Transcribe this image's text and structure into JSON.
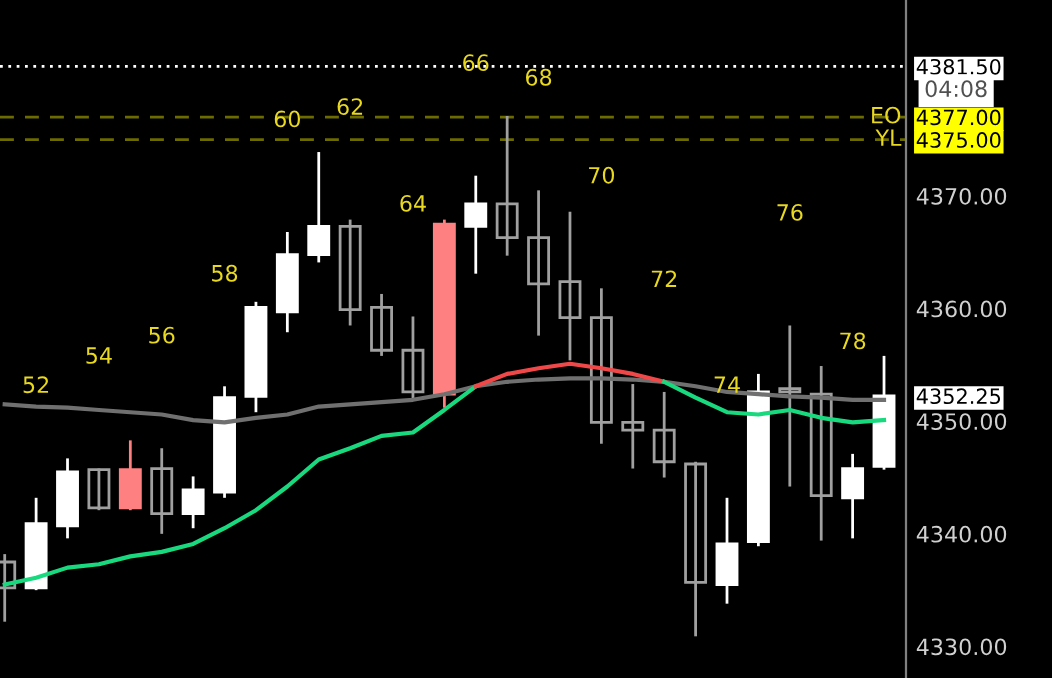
{
  "chart_data": {
    "type": "candlestick",
    "categories": [
      null,
      null,
      null,
      null,
      null,
      null,
      null,
      null,
      null,
      null,
      null,
      null,
      null,
      null,
      null,
      null,
      null,
      null,
      null,
      null,
      null,
      null,
      null,
      null,
      null,
      null,
      null,
      null,
      null
    ],
    "ohlc": [
      [
        4337.5,
        4338.2,
        4332.2,
        4335.2
      ],
      [
        4335.2,
        4343.2,
        4335.0,
        4340.9
      ],
      [
        4340.7,
        4346.7,
        4339.6,
        4345.5
      ],
      [
        4345.7,
        4345.8,
        4342.1,
        4342.3
      ],
      [
        4342.3,
        4348.3,
        4342.1,
        4345.7
      ],
      [
        4345.8,
        4347.6,
        4340.0,
        4341.8
      ],
      [
        4341.8,
        4345.1,
        4340.5,
        4343.9
      ],
      [
        4343.7,
        4353.1,
        4343.2,
        4352.1
      ],
      [
        4352.2,
        4360.6,
        4350.8,
        4360.1
      ],
      [
        4359.7,
        4366.8,
        4357.9,
        4364.8
      ],
      [
        4364.8,
        4373.9,
        4364.1,
        4367.3
      ],
      [
        4367.3,
        4367.9,
        4358.5,
        4359.9
      ],
      [
        4360.1,
        4361.3,
        4355.8,
        4356.3
      ],
      [
        4356.3,
        4359.3,
        4351.9,
        4352.6
      ],
      [
        4352.4,
        4367.9,
        4351.2,
        4367.5
      ],
      [
        4367.3,
        4371.8,
        4363.1,
        4369.3
      ],
      [
        4369.3,
        4377.1,
        4364.7,
        4366.3
      ],
      [
        4366.3,
        4370.5,
        4357.6,
        4362.2
      ],
      [
        4362.4,
        4368.6,
        4355.4,
        4359.2
      ],
      [
        4359.2,
        4361.8,
        4348.0,
        4349.9
      ],
      [
        4349.9,
        4353.3,
        4345.8,
        4349.2
      ],
      [
        4349.2,
        4352.6,
        4345.0,
        4346.4
      ],
      [
        4346.2,
        4346.4,
        4330.9,
        4335.7
      ],
      [
        4335.5,
        4343.2,
        4333.8,
        4339.1
      ],
      [
        4339.3,
        4354.2,
        4338.9,
        4352.6
      ],
      [
        4352.9,
        4358.5,
        4344.2,
        4352.6
      ],
      [
        4352.4,
        4354.9,
        4339.4,
        4343.4
      ],
      [
        4343.2,
        4347.1,
        4339.6,
        4345.8
      ],
      [
        4346.0,
        4355.8,
        4345.7,
        4352.25
      ]
    ],
    "colors": [
      "#a0a0a0",
      "#ffffff",
      "#ffffff",
      "#a0a0a0",
      "#ff8080",
      "#a0a0a0",
      "#ffffff",
      "#ffffff",
      "#ffffff",
      "#ffffff",
      "#ffffff",
      "#a0a0a0",
      "#a0a0a0",
      "#a0a0a0",
      "#ff8080",
      "#ffffff",
      "#a0a0a0",
      "#a0a0a0",
      "#a0a0a0",
      "#a0a0a0",
      "#a0a0a0",
      "#a0a0a0",
      "#a0a0a0",
      "#ffffff",
      "#ffffff",
      "#a0a0a0",
      "#a0a0a0",
      "#ffffff",
      "#ffffff"
    ],
    "value_labels": [
      null,
      "52",
      null,
      "54",
      null,
      "56",
      null,
      "58",
      null,
      "60",
      null,
      "62",
      null,
      "64",
      null,
      "66",
      null,
      "68",
      null,
      "70",
      null,
      "72",
      null,
      "74",
      null,
      "76",
      null,
      "78",
      null
    ],
    "series": [
      {
        "type": "line",
        "color": "#707070",
        "values": [
          4351.5,
          4351.3,
          4351.2,
          4351.0,
          4350.8,
          4350.6,
          4350.1,
          4349.9,
          4350.3,
          4350.6,
          4351.3,
          4351.5,
          4351.7,
          4351.9,
          4352.4,
          4353.1,
          4353.5,
          4353.7,
          4353.8,
          4353.8,
          4353.7,
          4353.5,
          4353.1,
          4352.6,
          4352.4,
          4352.2,
          4352.1,
          4351.9,
          4351.9
        ]
      },
      {
        "type": "line",
        "color": "#19d97f",
        "values": [
          4335.5,
          4336.1,
          4337.0,
          4337.3,
          4338.0,
          4338.4,
          4339.1,
          4340.5,
          4342.1,
          4344.2,
          4346.6,
          4347.6,
          4348.7,
          4349.0,
          4351.0,
          4353.1,
          null,
          null,
          null,
          null,
          null,
          null,
          null,
          null,
          null,
          null,
          null,
          null,
          null
        ]
      },
      {
        "type": "line",
        "color": "#f04848",
        "values": [
          null,
          null,
          null,
          null,
          null,
          null,
          null,
          null,
          null,
          null,
          null,
          null,
          null,
          null,
          null,
          4353.1,
          4354.2,
          4354.7,
          4355.1,
          4354.7,
          4354.2,
          4353.5,
          null,
          null,
          null,
          null,
          null,
          null,
          null
        ]
      },
      {
        "type": "line",
        "color": "#19d97f",
        "values": [
          null,
          null,
          null,
          null,
          null,
          null,
          null,
          null,
          null,
          null,
          null,
          null,
          null,
          null,
          null,
          null,
          null,
          null,
          null,
          null,
          null,
          4353.5,
          4352.1,
          4350.8,
          4350.6,
          4351.0,
          4350.3,
          4349.9,
          4350.1
        ]
      }
    ],
    "ylim": [
      4327.2,
      4387.4
    ],
    "yticks": [
      {
        "value": 4330,
        "label": "4330.00"
      },
      {
        "value": 4340,
        "label": "4340.00"
      },
      {
        "value": 4350,
        "label": "4350.00"
      },
      {
        "value": 4360,
        "label": "4360.00"
      },
      {
        "value": 4370,
        "label": "4370.00"
      },
      {
        "value": 4352.25,
        "label": "4352.25"
      },
      {
        "value": 4375,
        "label": "4375.00"
      },
      {
        "value": 4377,
        "label": "4377.00"
      },
      {
        "value": 4381.5,
        "label": "4381.50"
      }
    ],
    "ref_lines": [
      {
        "axis": "y",
        "value": 4381.5,
        "color": "#ffffff",
        "line_style": "dotted"
      },
      {
        "axis": "y",
        "value": 4377,
        "label": "EO",
        "color": "#6b6b00",
        "line_style": "dashed"
      },
      {
        "axis": "y",
        "value": 4375,
        "label": "YL",
        "color": "#6b6b00",
        "line_style": "dashed"
      }
    ],
    "annotations": [
      "04:08"
    ],
    "tick_labels": "y"
  }
}
